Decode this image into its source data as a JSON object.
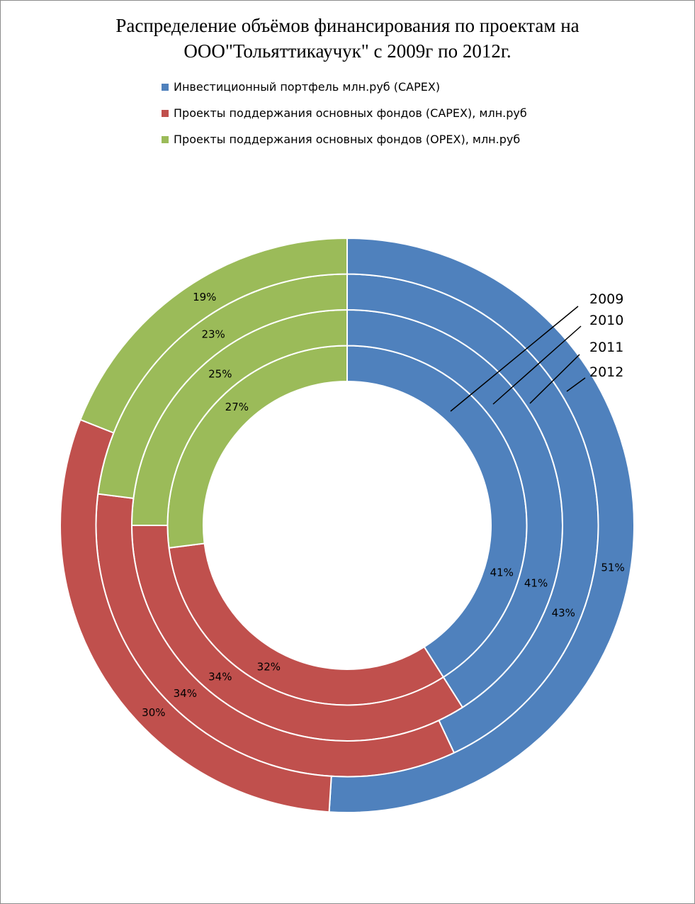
{
  "chart_data": {
    "type": "doughnut",
    "title_line1": "Распределение объёмов финансирования по проектам на",
    "title_line2": "ООО\"Тольяттикаучук\"  с 2009г по 2012г.",
    "legend_position": "top",
    "series_names": [
      "Инвестиционный портфель млн.руб (CAPEX)",
      "Проекты поддержания основных фондов (CAPEX), млн.руб",
      "Проекты поддержания основных фондов (OPEX), млн.руб"
    ],
    "colors": [
      "#4f81bd",
      "#c0504d",
      "#9bbb59"
    ],
    "rings": [
      {
        "year": "2009",
        "values": [
          41,
          32,
          27
        ],
        "labels": [
          "41%",
          "32%",
          "27%"
        ]
      },
      {
        "year": "2010",
        "values": [
          41,
          34,
          25
        ],
        "labels": [
          "41%",
          "34%",
          "25%"
        ]
      },
      {
        "year": "2011",
        "values": [
          43,
          34,
          23
        ],
        "labels": [
          "43%",
          "34%",
          "23%"
        ]
      },
      {
        "year": "2012",
        "values": [
          51,
          30,
          19
        ],
        "labels": [
          "51%",
          "30%",
          "19%"
        ]
      }
    ]
  }
}
